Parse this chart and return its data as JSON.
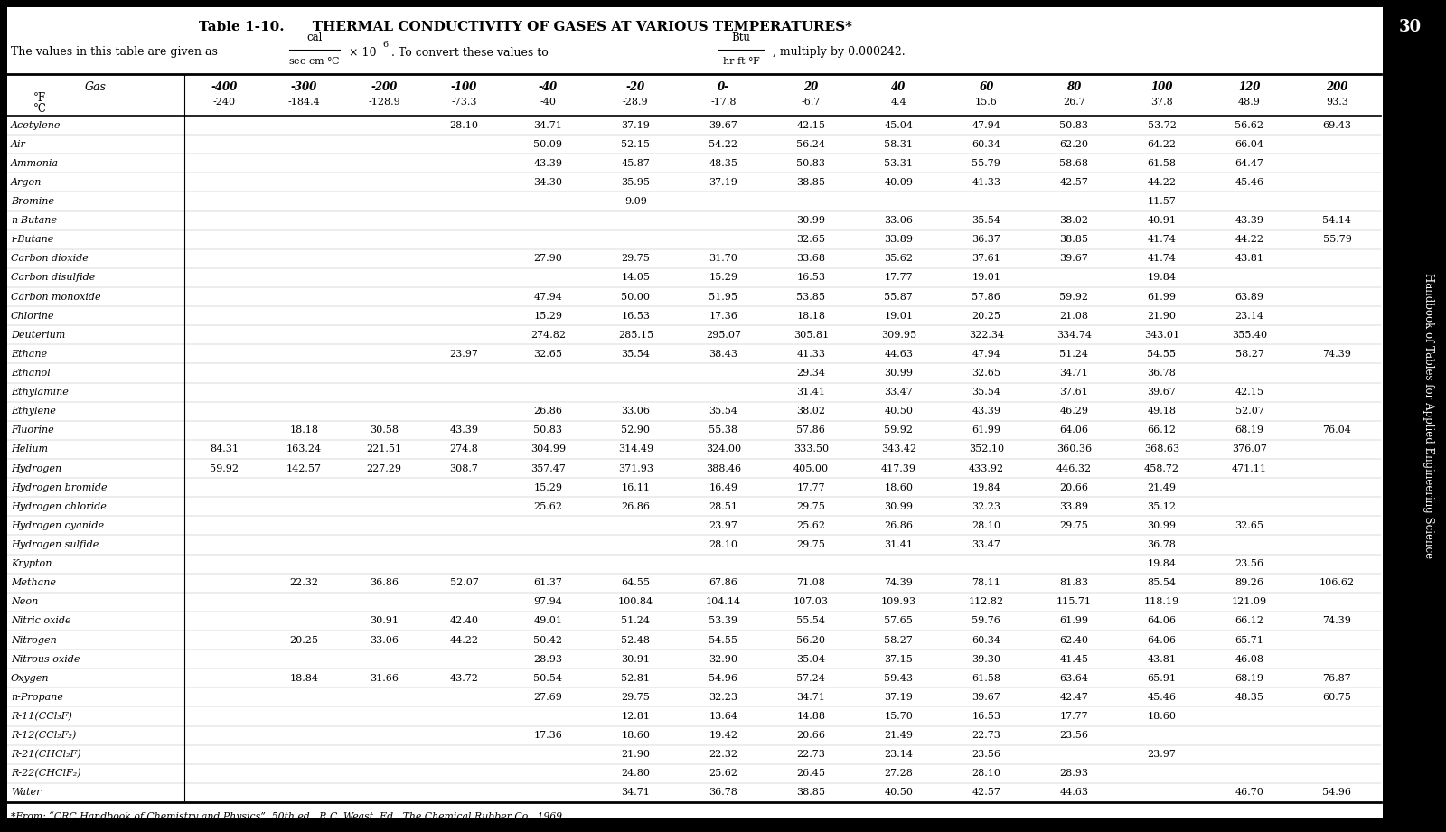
{
  "title_bold": "Table 1-10.",
  "title_rest": "   THERMAL CONDUCTIVITY OF GASES AT VARIOUS TEMPERATURES*",
  "footnote": "*From: “CRC Handbook of Chemistry and Physics”, 50th ed., R.C. Weast, Ed., The Chemical Rubber Co., 1969.",
  "col_headers_F": [
    "",
    "-400",
    "-300",
    "-200",
    "-100",
    "-40",
    "-20",
    "0-",
    "20",
    "40",
    "60",
    "80",
    "100",
    "120",
    "200"
  ],
  "col_headers_C": [
    "",
    "-240",
    "-184.4",
    "-128.9",
    "-73.3",
    "-40",
    "-28.9",
    "-17.8",
    "-6.7",
    "4.4",
    "15.6",
    "26.7",
    "37.8",
    "48.9",
    "93.3"
  ],
  "rows": [
    [
      "Acetylene",
      "",
      "",
      "",
      "28.10",
      "34.71",
      "37.19",
      "39.67",
      "42.15",
      "45.04",
      "47.94",
      "50.83",
      "53.72",
      "56.62",
      "69.43"
    ],
    [
      "Air",
      "",
      "",
      "",
      "",
      "50.09",
      "52.15",
      "54.22",
      "56.24",
      "58.31",
      "60.34",
      "62.20",
      "64.22",
      "66.04",
      ""
    ],
    [
      "Ammonia",
      "",
      "",
      "",
      "",
      "43.39",
      "45.87",
      "48.35",
      "50.83",
      "53.31",
      "55.79",
      "58.68",
      "61.58",
      "64.47",
      ""
    ],
    [
      "Argon",
      "",
      "",
      "",
      "",
      "34.30",
      "35.95",
      "37.19",
      "38.85",
      "40.09",
      "41.33",
      "42.57",
      "44.22",
      "45.46",
      ""
    ],
    [
      "Bromine",
      "",
      "",
      "",
      "",
      "",
      "9.09",
      "",
      "",
      "",
      "",
      "",
      "11.57",
      "",
      ""
    ],
    [
      "n-Butane",
      "",
      "",
      "",
      "",
      "",
      "",
      "",
      "30.99",
      "33.06",
      "35.54",
      "38.02",
      "40.91",
      "43.39",
      "54.14"
    ],
    [
      "i-Butane",
      "",
      "",
      "",
      "",
      "",
      "",
      "",
      "32.65",
      "33.89",
      "36.37",
      "38.85",
      "41.74",
      "44.22",
      "55.79"
    ],
    [
      "Carbon dioxide",
      "",
      "",
      "",
      "",
      "27.90",
      "29.75",
      "31.70",
      "33.68",
      "35.62",
      "37.61",
      "39.67",
      "41.74",
      "43.81",
      ""
    ],
    [
      "Carbon disulfide",
      "",
      "",
      "",
      "",
      "",
      "14.05",
      "15.29",
      "16.53",
      "17.77",
      "19.01",
      "",
      "19.84",
      "",
      ""
    ],
    [
      "Carbon monoxide",
      "",
      "",
      "",
      "",
      "47.94",
      "50.00",
      "51.95",
      "53.85",
      "55.87",
      "57.86",
      "59.92",
      "61.99",
      "63.89",
      ""
    ],
    [
      "Chlorine",
      "",
      "",
      "",
      "",
      "15.29",
      "16.53",
      "17.36",
      "18.18",
      "19.01",
      "20.25",
      "21.08",
      "21.90",
      "23.14",
      ""
    ],
    [
      "Deuterium",
      "",
      "",
      "",
      "",
      "274.82",
      "285.15",
      "295.07",
      "305.81",
      "309.95",
      "322.34",
      "334.74",
      "343.01",
      "355.40",
      ""
    ],
    [
      "Ethane",
      "",
      "",
      "",
      "23.97",
      "32.65",
      "35.54",
      "38.43",
      "41.33",
      "44.63",
      "47.94",
      "51.24",
      "54.55",
      "58.27",
      "74.39"
    ],
    [
      "Ethanol",
      "",
      "",
      "",
      "",
      "",
      "",
      "",
      "29.34",
      "30.99",
      "32.65",
      "34.71",
      "36.78",
      "",
      ""
    ],
    [
      "Ethylamine",
      "",
      "",
      "",
      "",
      "",
      "",
      "",
      "31.41",
      "33.47",
      "35.54",
      "37.61",
      "39.67",
      "42.15",
      ""
    ],
    [
      "Ethylene",
      "",
      "",
      "",
      "",
      "26.86",
      "33.06",
      "35.54",
      "38.02",
      "40.50",
      "43.39",
      "46.29",
      "49.18",
      "52.07",
      ""
    ],
    [
      "Fluorine",
      "",
      "18.18",
      "30.58",
      "43.39",
      "50.83",
      "52.90",
      "55.38",
      "57.86",
      "59.92",
      "61.99",
      "64.06",
      "66.12",
      "68.19",
      "76.04"
    ],
    [
      "Helium",
      "84.31",
      "163.24",
      "221.51",
      "274.8",
      "304.99",
      "314.49",
      "324.00",
      "333.50",
      "343.42",
      "352.10",
      "360.36",
      "368.63",
      "376.07",
      ""
    ],
    [
      "Hydrogen",
      "59.92",
      "142.57",
      "227.29",
      "308.7",
      "357.47",
      "371.93",
      "388.46",
      "405.00",
      "417.39",
      "433.92",
      "446.32",
      "458.72",
      "471.11",
      ""
    ],
    [
      "Hydrogen bromide",
      "",
      "",
      "",
      "",
      "15.29",
      "16.11",
      "16.49",
      "17.77",
      "18.60",
      "19.84",
      "20.66",
      "21.49",
      "",
      ""
    ],
    [
      "Hydrogen chloride",
      "",
      "",
      "",
      "",
      "25.62",
      "26.86",
      "28.51",
      "29.75",
      "30.99",
      "32.23",
      "33.89",
      "35.12",
      "",
      ""
    ],
    [
      "Hydrogen cyanide",
      "",
      "",
      "",
      "",
      "",
      "",
      "23.97",
      "25.62",
      "26.86",
      "28.10",
      "29.75",
      "30.99",
      "32.65",
      ""
    ],
    [
      "Hydrogen sulfide",
      "",
      "",
      "",
      "",
      "",
      "",
      "28.10",
      "29.75",
      "31.41",
      "33.47",
      "",
      "36.78",
      "",
      ""
    ],
    [
      "Krypton",
      "",
      "",
      "",
      "",
      "",
      "",
      "",
      "",
      "",
      "",
      "",
      "19.84",
      "23.56",
      ""
    ],
    [
      "Methane",
      "",
      "22.32",
      "36.86",
      "52.07",
      "61.37",
      "64.55",
      "67.86",
      "71.08",
      "74.39",
      "78.11",
      "81.83",
      "85.54",
      "89.26",
      "106.62"
    ],
    [
      "Neon",
      "",
      "",
      "",
      "",
      "97.94",
      "100.84",
      "104.14",
      "107.03",
      "109.93",
      "112.82",
      "115.71",
      "118.19",
      "121.09",
      ""
    ],
    [
      "Nitric oxide",
      "",
      "",
      "30.91",
      "42.40",
      "49.01",
      "51.24",
      "53.39",
      "55.54",
      "57.65",
      "59.76",
      "61.99",
      "64.06",
      "66.12",
      "74.39"
    ],
    [
      "Nitrogen",
      "",
      "20.25",
      "33.06",
      "44.22",
      "50.42",
      "52.48",
      "54.55",
      "56.20",
      "58.27",
      "60.34",
      "62.40",
      "64.06",
      "65.71",
      ""
    ],
    [
      "Nitrous oxide",
      "",
      "",
      "",
      "",
      "28.93",
      "30.91",
      "32.90",
      "35.04",
      "37.15",
      "39.30",
      "41.45",
      "43.81",
      "46.08",
      ""
    ],
    [
      "Oxygen",
      "",
      "18.84",
      "31.66",
      "43.72",
      "50.54",
      "52.81",
      "54.96",
      "57.24",
      "59.43",
      "61.58",
      "63.64",
      "65.91",
      "68.19",
      "76.87"
    ],
    [
      "n-Propane",
      "",
      "",
      "",
      "",
      "27.69",
      "29.75",
      "32.23",
      "34.71",
      "37.19",
      "39.67",
      "42.47",
      "45.46",
      "48.35",
      "60.75"
    ],
    [
      "R-11(CCl₃F)",
      "",
      "",
      "",
      "",
      "",
      "12.81",
      "13.64",
      "14.88",
      "15.70",
      "16.53",
      "17.77",
      "18.60",
      "",
      ""
    ],
    [
      "R-12(CCl₂F₂)",
      "",
      "",
      "",
      "",
      "17.36",
      "18.60",
      "19.42",
      "20.66",
      "21.49",
      "22.73",
      "23.56",
      "",
      "",
      ""
    ],
    [
      "R-21(CHCl₂F)",
      "",
      "",
      "",
      "",
      "",
      "21.90",
      "22.32",
      "22.73",
      "23.14",
      "23.56",
      "",
      "23.97",
      "",
      ""
    ],
    [
      "R-22(CHClF₂)",
      "",
      "",
      "",
      "",
      "",
      "24.80",
      "25.62",
      "26.45",
      "27.28",
      "28.10",
      "28.93",
      "",
      "",
      ""
    ],
    [
      "Water",
      "",
      "",
      "",
      "",
      "",
      "34.71",
      "36.78",
      "38.85",
      "40.50",
      "42.57",
      "44.63",
      "",
      "46.70",
      "54.96"
    ]
  ],
  "page_bg": "#000000",
  "table_bg": "#ffffff",
  "text_color": "#000000",
  "header_text_color": "#000000",
  "side_text": "Handbook of Tables for Applied Engineering Science",
  "page_num": "30"
}
